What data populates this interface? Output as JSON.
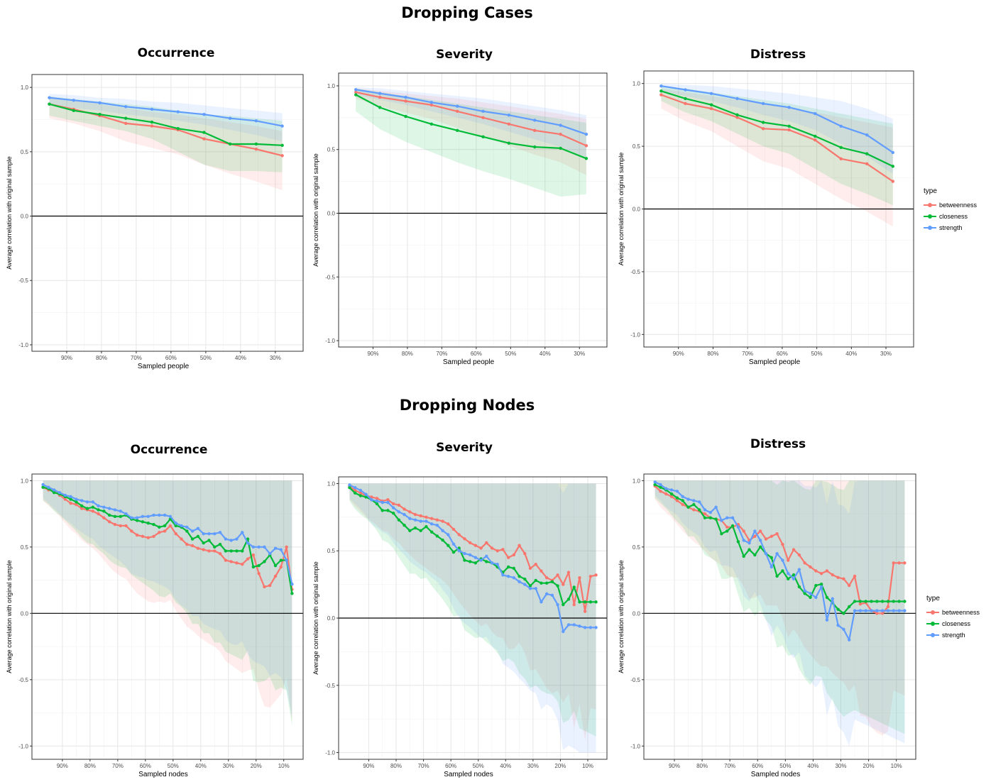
{
  "titles": {
    "cases": "Dropping Cases",
    "nodes": "Dropping Nodes"
  },
  "colors": {
    "betweenness": "#F8766D",
    "closeness": "#00BA38",
    "strength": "#619CFF"
  },
  "legend": {
    "title": "type",
    "items": [
      "betweenness",
      "closeness",
      "strength"
    ]
  },
  "axes": {
    "ylabel": "Average correlation with original sample",
    "xlabel_cases": "Sampled people",
    "xlabel_nodes": "Sampled nodes",
    "yticks": [
      "-1.0",
      "-0.5",
      "0.0",
      "0.5",
      "1.0"
    ],
    "xticks_cases": [
      "90%",
      "80%",
      "70%",
      "60%",
      "50%",
      "40%",
      "30%"
    ],
    "xticks_nodes": [
      "90%",
      "80%",
      "70%",
      "60%",
      "50%",
      "40%",
      "30%",
      "20%",
      "10%"
    ]
  },
  "chart_data": [
    {
      "type": "line",
      "title": "Occurrence",
      "group": "Dropping Cases",
      "xlabel": "Sampled people",
      "ylabel": "Average correlation with original sample",
      "xlim": [
        100,
        22
      ],
      "ylim": [
        -1.05,
        1.1
      ],
      "x": [
        95,
        88,
        80.5,
        73,
        65.5,
        58,
        50.5,
        43,
        35.5,
        28
      ],
      "series": [
        {
          "name": "betweenness",
          "values": [
            0.87,
            0.83,
            0.78,
            0.72,
            0.7,
            0.67,
            0.6,
            0.56,
            0.52,
            0.47
          ],
          "lower": [
            0.76,
            0.72,
            0.66,
            0.58,
            0.53,
            0.48,
            0.4,
            0.33,
            0.27,
            0.2
          ],
          "upper": [
            0.93,
            0.9,
            0.87,
            0.84,
            0.81,
            0.79,
            0.76,
            0.73,
            0.7,
            0.66
          ]
        },
        {
          "name": "closeness",
          "values": [
            0.87,
            0.82,
            0.79,
            0.76,
            0.73,
            0.68,
            0.65,
            0.56,
            0.56,
            0.55
          ],
          "lower": [
            0.78,
            0.74,
            0.7,
            0.66,
            0.6,
            0.5,
            0.4,
            0.35,
            0.35,
            0.34
          ],
          "upper": [
            0.93,
            0.91,
            0.89,
            0.87,
            0.85,
            0.82,
            0.79,
            0.78,
            0.76,
            0.74
          ]
        },
        {
          "name": "strength",
          "values": [
            0.92,
            0.9,
            0.88,
            0.85,
            0.83,
            0.81,
            0.79,
            0.76,
            0.74,
            0.7
          ],
          "lower": [
            0.87,
            0.84,
            0.82,
            0.79,
            0.77,
            0.74,
            0.71,
            0.67,
            0.63,
            0.58
          ],
          "upper": [
            0.95,
            0.94,
            0.92,
            0.91,
            0.89,
            0.88,
            0.86,
            0.84,
            0.82,
            0.8
          ]
        }
      ]
    },
    {
      "type": "line",
      "title": "Severity",
      "group": "Dropping Cases",
      "xlabel": "Sampled people",
      "ylabel": "Average correlation with original sample",
      "xlim": [
        100,
        22
      ],
      "ylim": [
        -1.05,
        1.1
      ],
      "x": [
        95,
        88,
        80.5,
        73,
        65.5,
        58,
        50.5,
        43,
        35.5,
        28
      ],
      "series": [
        {
          "name": "betweenness",
          "values": [
            0.95,
            0.91,
            0.88,
            0.85,
            0.8,
            0.75,
            0.7,
            0.65,
            0.62,
            0.53
          ],
          "lower": [
            0.9,
            0.84,
            0.79,
            0.74,
            0.67,
            0.6,
            0.53,
            0.46,
            0.4,
            0.3
          ],
          "upper": [
            0.98,
            0.96,
            0.94,
            0.92,
            0.9,
            0.87,
            0.84,
            0.81,
            0.78,
            0.74
          ]
        },
        {
          "name": "closeness",
          "values": [
            0.93,
            0.83,
            0.76,
            0.7,
            0.65,
            0.6,
            0.55,
            0.52,
            0.51,
            0.43
          ],
          "lower": [
            0.8,
            0.66,
            0.56,
            0.48,
            0.4,
            0.33,
            0.27,
            0.2,
            0.13,
            0.15
          ],
          "upper": [
            0.98,
            0.95,
            0.92,
            0.89,
            0.86,
            0.83,
            0.8,
            0.77,
            0.74,
            0.71
          ]
        },
        {
          "name": "strength",
          "values": [
            0.97,
            0.94,
            0.91,
            0.87,
            0.84,
            0.8,
            0.77,
            0.73,
            0.69,
            0.62
          ],
          "lower": [
            0.93,
            0.89,
            0.85,
            0.8,
            0.75,
            0.7,
            0.64,
            0.58,
            0.52,
            0.44
          ],
          "upper": [
            0.99,
            0.98,
            0.96,
            0.94,
            0.92,
            0.9,
            0.87,
            0.84,
            0.81,
            0.77
          ]
        }
      ]
    },
    {
      "type": "line",
      "title": "Distress",
      "group": "Dropping Cases",
      "xlabel": "Sampled people",
      "ylabel": "Average correlation with original sample",
      "xlim": [
        100,
        22
      ],
      "ylim": [
        -1.1,
        1.1
      ],
      "x": [
        95,
        88,
        80.5,
        73,
        65.5,
        58,
        50.5,
        43,
        35.5,
        28
      ],
      "series": [
        {
          "name": "betweenness",
          "values": [
            0.91,
            0.84,
            0.8,
            0.73,
            0.64,
            0.63,
            0.55,
            0.4,
            0.36,
            0.22
          ],
          "lower": [
            0.8,
            0.7,
            0.62,
            0.5,
            0.38,
            0.32,
            0.2,
            0.08,
            -0.02,
            -0.14
          ],
          "upper": [
            0.96,
            0.93,
            0.9,
            0.87,
            0.84,
            0.81,
            0.77,
            0.73,
            0.69,
            0.65
          ]
        },
        {
          "name": "closeness",
          "values": [
            0.94,
            0.88,
            0.83,
            0.75,
            0.69,
            0.66,
            0.58,
            0.49,
            0.44,
            0.34
          ],
          "lower": [
            0.86,
            0.77,
            0.7,
            0.6,
            0.5,
            0.44,
            0.32,
            0.2,
            0.12,
            0.03
          ],
          "upper": [
            0.98,
            0.96,
            0.93,
            0.9,
            0.87,
            0.84,
            0.8,
            0.76,
            0.72,
            0.68
          ]
        },
        {
          "name": "strength",
          "values": [
            0.98,
            0.95,
            0.92,
            0.88,
            0.84,
            0.81,
            0.76,
            0.66,
            0.59,
            0.45
          ],
          "lower": [
            0.94,
            0.9,
            0.86,
            0.81,
            0.75,
            0.7,
            0.63,
            0.52,
            0.42,
            0.28
          ],
          "upper": [
            1.0,
            0.99,
            0.98,
            0.96,
            0.94,
            0.92,
            0.89,
            0.86,
            0.8,
            0.72
          ]
        }
      ]
    },
    {
      "type": "line",
      "title": "Occurrence",
      "group": "Dropping Nodes",
      "xlabel": "Sampled nodes",
      "ylabel": "Average correlation with original sample",
      "xlim": [
        101,
        3
      ],
      "ylim": [
        -1.1,
        1.05
      ],
      "x": [
        97,
        95,
        93,
        91,
        89,
        87,
        85,
        83,
        81,
        79,
        77,
        75,
        73,
        71,
        69,
        67,
        65,
        63,
        61,
        59,
        57,
        55,
        53,
        51,
        49,
        47,
        45,
        43,
        41,
        39,
        37,
        35,
        33,
        31,
        29,
        27,
        25,
        23,
        21,
        19,
        17,
        15,
        13,
        11,
        9,
        7
      ],
      "series": [
        {
          "name": "betweenness",
          "values": [
            0.95,
            0.93,
            0.92,
            0.89,
            0.86,
            0.83,
            0.82,
            0.79,
            0.78,
            0.77,
            0.75,
            0.72,
            0.69,
            0.67,
            0.66,
            0.66,
            0.62,
            0.59,
            0.58,
            0.57,
            0.58,
            0.61,
            0.62,
            0.66,
            0.6,
            0.56,
            0.52,
            0.51,
            0.49,
            0.48,
            0.47,
            0.47,
            0.45,
            0.4,
            0.39,
            0.38,
            0.37,
            0.41,
            0.44,
            0.3,
            0.2,
            0.21,
            0.28,
            0.35,
            0.5,
            0.18
          ]
        },
        {
          "name": "closeness",
          "values": [
            0.95,
            0.94,
            0.91,
            0.9,
            0.88,
            0.86,
            0.84,
            0.81,
            0.79,
            0.8,
            0.78,
            0.77,
            0.74,
            0.73,
            0.73,
            0.74,
            0.71,
            0.7,
            0.69,
            0.68,
            0.67,
            0.65,
            0.66,
            0.71,
            0.66,
            0.65,
            0.62,
            0.56,
            0.58,
            0.53,
            0.55,
            0.5,
            0.52,
            0.47,
            0.47,
            0.47,
            0.47,
            0.56,
            0.35,
            0.36,
            0.39,
            0.44,
            0.36,
            0.4,
            0.4,
            0.15
          ]
        },
        {
          "name": "strength",
          "values": [
            0.97,
            0.95,
            0.93,
            0.91,
            0.89,
            0.88,
            0.86,
            0.85,
            0.84,
            0.84,
            0.81,
            0.8,
            0.79,
            0.78,
            0.77,
            0.75,
            0.72,
            0.72,
            0.73,
            0.73,
            0.74,
            0.74,
            0.74,
            0.73,
            0.68,
            0.66,
            0.65,
            0.62,
            0.64,
            0.6,
            0.6,
            0.6,
            0.61,
            0.56,
            0.55,
            0.56,
            0.61,
            0.53,
            0.5,
            0.5,
            0.5,
            0.45,
            0.49,
            0.48,
            0.4,
            0.22
          ]
        }
      ]
    },
    {
      "type": "line",
      "title": "Severity",
      "group": "Dropping Nodes",
      "xlabel": "Sampled nodes",
      "ylabel": "Average correlation with original sample",
      "xlim": [
        101,
        3
      ],
      "ylim": [
        -1.05,
        1.05
      ],
      "x": [
        97,
        95,
        93,
        91,
        89,
        87,
        85,
        83,
        81,
        79,
        77,
        75,
        73,
        71,
        69,
        67,
        65,
        63,
        61,
        59,
        57,
        55,
        53,
        51,
        49,
        47,
        45,
        43,
        41,
        39,
        37,
        35,
        33,
        31,
        29,
        27,
        25,
        23,
        21,
        19,
        17,
        15,
        13,
        11,
        9,
        7
      ],
      "series": [
        {
          "name": "betweenness",
          "values": [
            0.98,
            0.95,
            0.93,
            0.91,
            0.9,
            0.89,
            0.87,
            0.88,
            0.85,
            0.84,
            0.81,
            0.79,
            0.77,
            0.76,
            0.75,
            0.74,
            0.73,
            0.72,
            0.7,
            0.66,
            0.62,
            0.59,
            0.56,
            0.54,
            0.52,
            0.56,
            0.52,
            0.5,
            0.51,
            0.45,
            0.47,
            0.54,
            0.48,
            0.37,
            0.4,
            0.35,
            0.3,
            0.28,
            0.32,
            0.25,
            0.34,
            0.1,
            0.3,
            0.05,
            0.31,
            0.32
          ]
        },
        {
          "name": "closeness",
          "values": [
            0.97,
            0.93,
            0.91,
            0.9,
            0.88,
            0.85,
            0.8,
            0.8,
            0.78,
            0.73,
            0.69,
            0.65,
            0.67,
            0.65,
            0.68,
            0.64,
            0.61,
            0.58,
            0.54,
            0.49,
            0.52,
            0.43,
            0.42,
            0.41,
            0.44,
            0.42,
            0.41,
            0.38,
            0.34,
            0.38,
            0.37,
            0.31,
            0.29,
            0.24,
            0.28,
            0.26,
            0.26,
            0.27,
            0.24,
            0.1,
            0.14,
            0.23,
            0.12,
            0.12,
            0.12,
            0.12
          ]
        },
        {
          "name": "strength",
          "values": [
            0.99,
            0.97,
            0.95,
            0.92,
            0.88,
            0.87,
            0.86,
            0.86,
            0.82,
            0.79,
            0.77,
            0.74,
            0.73,
            0.72,
            0.72,
            0.7,
            0.69,
            0.65,
            0.62,
            0.55,
            0.5,
            0.48,
            0.47,
            0.45,
            0.43,
            0.46,
            0.41,
            0.4,
            0.32,
            0.31,
            0.3,
            0.27,
            0.25,
            0.22,
            0.22,
            0.12,
            0.18,
            0.17,
            0.1,
            -0.1,
            -0.05,
            -0.05,
            -0.06,
            -0.07,
            -0.07,
            -0.07
          ]
        }
      ]
    },
    {
      "type": "line",
      "title": "Distress",
      "group": "Dropping Nodes",
      "xlabel": "Sampled nodes",
      "ylabel": "Average correlation with original sample",
      "xlim": [
        101,
        3
      ],
      "ylim": [
        -1.1,
        1.05
      ],
      "x": [
        97,
        95,
        93,
        91,
        89,
        87,
        85,
        83,
        81,
        79,
        77,
        75,
        73,
        71,
        69,
        67,
        65,
        63,
        61,
        59,
        57,
        55,
        53,
        51,
        49,
        47,
        45,
        43,
        41,
        39,
        37,
        35,
        33,
        31,
        29,
        27,
        25,
        23,
        21,
        19,
        17,
        15,
        13,
        11,
        9,
        7
      ],
      "series": [
        {
          "name": "betweenness",
          "values": [
            0.96,
            0.92,
            0.9,
            0.88,
            0.85,
            0.82,
            0.8,
            0.78,
            0.77,
            0.75,
            0.72,
            0.71,
            0.7,
            0.65,
            0.65,
            0.67,
            0.62,
            0.55,
            0.58,
            0.62,
            0.56,
            0.58,
            0.6,
            0.52,
            0.4,
            0.48,
            0.44,
            0.38,
            0.35,
            0.32,
            0.3,
            0.32,
            0.29,
            0.27,
            0.26,
            0.21,
            0.28,
            0.07,
            0.08,
            0.02,
            0.0,
            0.0,
            0.05,
            0.38,
            0.38,
            0.38
          ]
        },
        {
          "name": "closeness",
          "values": [
            0.97,
            0.95,
            0.93,
            0.9,
            0.87,
            0.85,
            0.8,
            0.82,
            0.78,
            0.72,
            0.72,
            0.71,
            0.6,
            0.62,
            0.66,
            0.54,
            0.43,
            0.48,
            0.44,
            0.5,
            0.45,
            0.42,
            0.28,
            0.32,
            0.26,
            0.29,
            0.2,
            0.15,
            0.12,
            0.21,
            0.22,
            0.12,
            0.08,
            0.03,
            0.0,
            0.05,
            0.09,
            0.09,
            0.09,
            0.09,
            0.09,
            0.09,
            0.09,
            0.09,
            0.09,
            0.09
          ]
        },
        {
          "name": "strength",
          "values": [
            0.99,
            0.97,
            0.94,
            0.93,
            0.92,
            0.88,
            0.86,
            0.85,
            0.84,
            0.78,
            0.76,
            0.8,
            0.7,
            0.72,
            0.72,
            0.65,
            0.55,
            0.53,
            0.62,
            0.55,
            0.45,
            0.35,
            0.45,
            0.4,
            0.3,
            0.26,
            0.33,
            0.17,
            0.15,
            0.12,
            0.2,
            -0.05,
            0.11,
            -0.09,
            -0.12,
            -0.2,
            0.02,
            0.02,
            0.02,
            0.02,
            0.02,
            0.02,
            0.02,
            0.02,
            0.02,
            0.02
          ]
        }
      ]
    }
  ]
}
